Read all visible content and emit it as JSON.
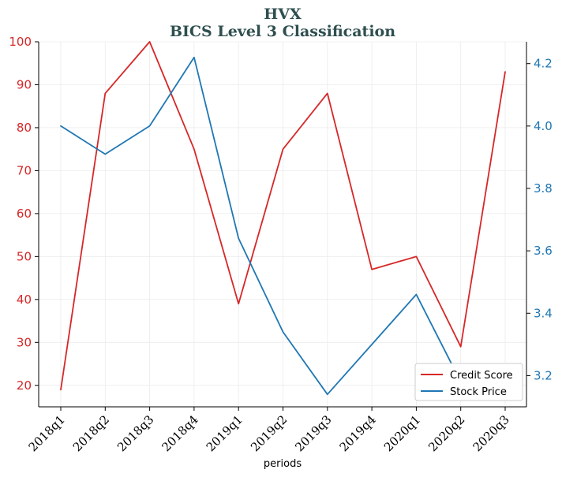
{
  "chart_data": {
    "type": "line",
    "title": "HVX",
    "subtitle": "BICS Level 3 Classification",
    "xlabel": "periods",
    "categories": [
      "2018q1",
      "2018q2",
      "2018q3",
      "2018q4",
      "2019q1",
      "2019q2",
      "2019q3",
      "2019q4",
      "2020q1",
      "2020q2",
      "2020q3"
    ],
    "series": [
      {
        "name": "Credit Score",
        "axis": "left",
        "color": "#d62728",
        "values": [
          19,
          88,
          100,
          75,
          39,
          75,
          88,
          47,
          50,
          29,
          93
        ]
      },
      {
        "name": "Stock Price",
        "axis": "right",
        "color": "#1f77b4",
        "values": [
          4.0,
          3.91,
          4.0,
          4.22,
          3.64,
          3.34,
          3.14,
          3.3,
          3.46,
          3.18,
          3.2
        ]
      }
    ],
    "ylim_left": [
      15,
      100
    ],
    "yticks_left": [
      20,
      30,
      40,
      50,
      60,
      70,
      80,
      90,
      100
    ],
    "ylim_right": [
      3.1,
      4.27
    ],
    "yticks_right": [
      3.2,
      3.4,
      3.6,
      3.8,
      4.0,
      4.2
    ],
    "grid": true,
    "legend": "bottom-right"
  }
}
